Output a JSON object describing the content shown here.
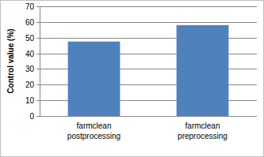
{
  "chart_data": {
    "type": "bar",
    "y_label": "Control value (%)",
    "categories": [
      "farmclean postprocessing",
      "farmclean preprocessing"
    ],
    "values": [
      47.5,
      58
    ],
    "color": "#4f81bd",
    "ylim": [
      0,
      70
    ],
    "yticks": [
      0,
      10,
      20,
      30,
      40,
      50,
      60,
      70
    ],
    "grid": true
  }
}
